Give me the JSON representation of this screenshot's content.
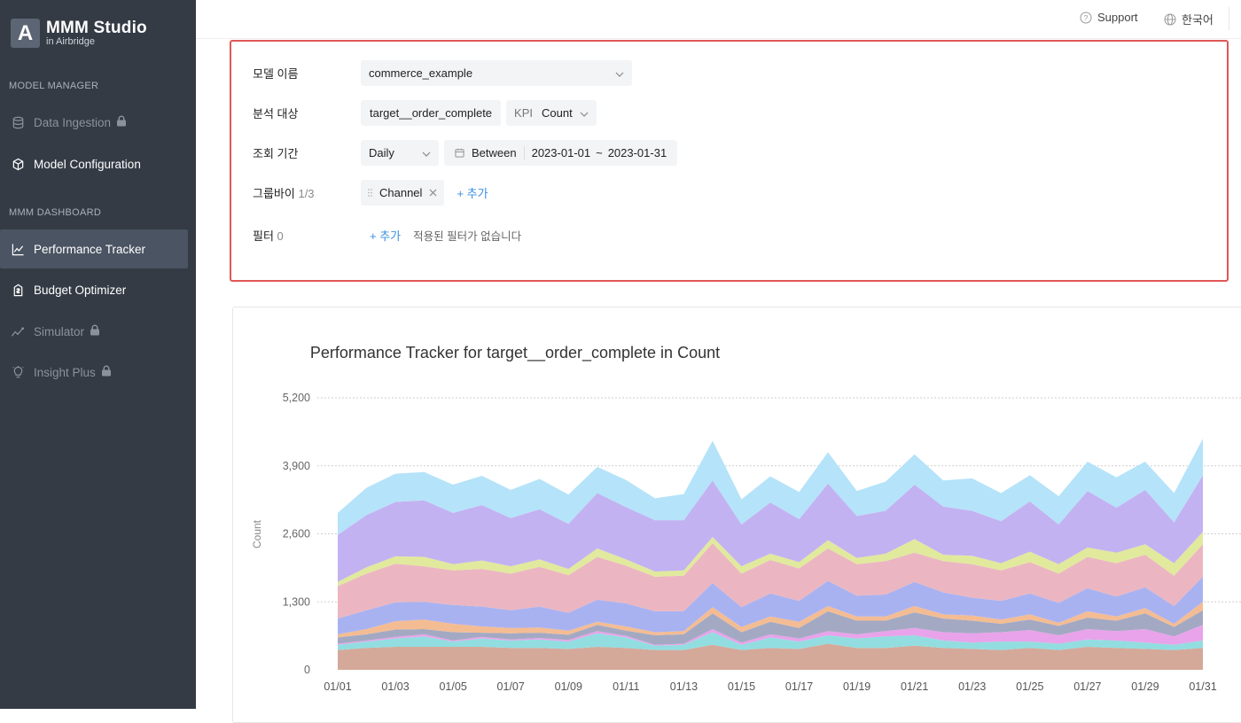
{
  "app": {
    "logo_letter": "A",
    "title": "MMM Studio",
    "subtitle": "in Airbridge"
  },
  "sidebar": {
    "sections": [
      {
        "title": "MODEL MANAGER"
      },
      {
        "title": "MMM DASHBOARD"
      }
    ],
    "items": [
      {
        "label": "Data Ingestion",
        "icon": "database-icon",
        "locked": true,
        "disabled": true
      },
      {
        "label": "Model Configuration",
        "icon": "cube-icon",
        "locked": false,
        "disabled": false
      },
      {
        "label": "Performance Tracker",
        "icon": "line-chart-icon",
        "locked": false,
        "disabled": false,
        "active": true
      },
      {
        "label": "Budget Optimizer",
        "icon": "money-bag-icon",
        "locked": false,
        "disabled": false
      },
      {
        "label": "Simulator",
        "icon": "trend-icon",
        "locked": true,
        "disabled": true
      },
      {
        "label": "Insight Plus",
        "icon": "bulb-icon",
        "locked": true,
        "disabled": true
      }
    ]
  },
  "topbar": {
    "support_label": "Support",
    "language_label": "한국어"
  },
  "filters": {
    "model_label": "모델 이름",
    "model_value": "commerce_example",
    "target_label": "분석 대상",
    "target_value": "target__order_complete",
    "kpi_prefix": "KPI",
    "kpi_value": "Count",
    "period_label": "조회 기간",
    "granularity_value": "Daily",
    "range_mode": "Between",
    "range_start": "2023-01-01",
    "range_sep": "~",
    "range_end": "2023-01-31",
    "groupby_label": "그룹바이",
    "groupby_count": "1/3",
    "groupby_chip": "Channel",
    "add_label": "+ 추가",
    "filter_label": "필터",
    "filter_count": "0",
    "filter_add_label": "+ 추가",
    "filter_empty": "적용된 필터가 없습니다"
  },
  "chart_data": {
    "type": "area",
    "stacked": true,
    "title": "Performance Tracker for target__order_complete in Count",
    "ylabel": "Count",
    "xlabel": "",
    "ylim": [
      0,
      5200
    ],
    "yticks": [
      "5,200",
      "3,900",
      "2,600",
      "1,300",
      "0"
    ],
    "ytick_values": [
      5200,
      3900,
      2600,
      1300,
      0
    ],
    "x_tick_labels": [
      "01/01",
      "01/03",
      "01/05",
      "01/07",
      "01/09",
      "01/11",
      "01/13",
      "01/15",
      "01/17",
      "01/19",
      "01/21",
      "01/23",
      "01/25",
      "01/27",
      "01/29",
      "01/31"
    ],
    "x": [
      "01/01",
      "01/02",
      "01/03",
      "01/04",
      "01/05",
      "01/06",
      "01/07",
      "01/08",
      "01/09",
      "01/10",
      "01/11",
      "01/12",
      "01/13",
      "01/14",
      "01/15",
      "01/16",
      "01/17",
      "01/18",
      "01/19",
      "01/20",
      "01/21",
      "01/22",
      "01/23",
      "01/24",
      "01/25",
      "01/26",
      "01/27",
      "01/28",
      "01/29",
      "01/30",
      "01/31"
    ],
    "grid": true,
    "series": [
      {
        "color": "#d4a99a",
        "values": [
          380,
          420,
          440,
          440,
          440,
          440,
          420,
          420,
          400,
          440,
          420,
          380,
          380,
          480,
          380,
          420,
          400,
          500,
          420,
          420,
          460,
          420,
          400,
          380,
          420,
          380,
          440,
          420,
          400,
          380,
          420
        ]
      },
      {
        "color": "#92dde0",
        "values": [
          100,
          120,
          160,
          200,
          100,
          160,
          140,
          160,
          140,
          260,
          200,
          80,
          100,
          240,
          100,
          200,
          140,
          160,
          180,
          220,
          200,
          140,
          120,
          160,
          120,
          120,
          140,
          140,
          120,
          100,
          140
        ]
      },
      {
        "color": "#e8a3ea",
        "values": [
          20,
          20,
          30,
          40,
          20,
          30,
          20,
          30,
          30,
          40,
          30,
          20,
          20,
          60,
          40,
          60,
          60,
          80,
          80,
          100,
          140,
          160,
          180,
          180,
          220,
          160,
          200,
          180,
          260,
          160,
          300
        ]
      },
      {
        "color": "#a3a9c3",
        "values": [
          120,
          120,
          140,
          100,
          160,
          80,
          120,
          100,
          100,
          120,
          100,
          180,
          180,
          300,
          200,
          240,
          200,
          380,
          260,
          200,
          300,
          260,
          240,
          160,
          200,
          180,
          220,
          200,
          300,
          180,
          280
        ]
      },
      {
        "color": "#f4bc93",
        "values": [
          60,
          100,
          160,
          180,
          160,
          120,
          100,
          100,
          80,
          60,
          80,
          60,
          60,
          120,
          100,
          100,
          120,
          100,
          80,
          80,
          120,
          80,
          100,
          80,
          100,
          60,
          120,
          80,
          100,
          60,
          160
        ]
      },
      {
        "color": "#a9b2f1",
        "values": [
          300,
          360,
          360,
          340,
          360,
          380,
          340,
          400,
          340,
          420,
          440,
          400,
          380,
          460,
          380,
          440,
          400,
          480,
          400,
          420,
          460,
          420,
          340,
          360,
          400,
          380,
          440,
          380,
          400,
          340,
          480
        ]
      },
      {
        "color": "#ebb6c1",
        "values": [
          620,
          700,
          740,
          680,
          660,
          720,
          700,
          760,
          720,
          820,
          720,
          660,
          680,
          760,
          640,
          640,
          620,
          620,
          600,
          640,
          560,
          600,
          640,
          580,
          600,
          560,
          600,
          640,
          620,
          580,
          620
        ]
      },
      {
        "color": "#e1e99d",
        "values": [
          80,
          120,
          140,
          180,
          120,
          160,
          140,
          140,
          120,
          160,
          120,
          100,
          100,
          120,
          140,
          120,
          120,
          160,
          120,
          140,
          260,
          120,
          160,
          140,
          200,
          180,
          180,
          200,
          200,
          240,
          240
        ]
      },
      {
        "color": "#c3b2f1",
        "values": [
          900,
          1000,
          1040,
          1080,
          980,
          1060,
          920,
          960,
          860,
          1060,
          1000,
          980,
          960,
          1080,
          800,
          980,
          820,
          1080,
          800,
          820,
          1040,
          920,
          860,
          800,
          960,
          760,
          1080,
          860,
          1040,
          780,
          1080
        ]
      },
      {
        "color": "#b5e3f9",
        "values": [
          420,
          520,
          540,
          540,
          540,
          560,
          540,
          580,
          560,
          500,
          520,
          420,
          500,
          760,
          480,
          500,
          520,
          600,
          480,
          560,
          580,
          500,
          620,
          540,
          500,
          540,
          560,
          580,
          540,
          560,
          700
        ]
      }
    ]
  }
}
